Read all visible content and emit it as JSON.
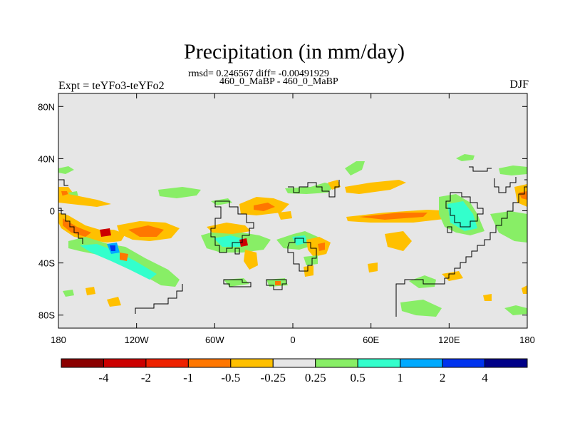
{
  "header": {
    "title": "Precipitation (in mm/day)",
    "stats": "rmsd= 0.246567 diff= -0.00491929",
    "period": "460_0_MaBP - 460_0_MaBP",
    "expt": "Expt = teYFo3-teYFo2",
    "season": "DJF"
  },
  "map": {
    "lon_range": [
      -180,
      180
    ],
    "lat_range": [
      -90,
      90
    ],
    "lat_ticks": [
      {
        "value": 80,
        "label": "80N"
      },
      {
        "value": 40,
        "label": "40N"
      },
      {
        "value": 0,
        "label": "0"
      },
      {
        "value": -40,
        "label": "40S"
      },
      {
        "value": -80,
        "label": "80S"
      }
    ],
    "lon_ticks": [
      {
        "value": -180,
        "label": "180"
      },
      {
        "value": -120,
        "label": "120W"
      },
      {
        "value": -60,
        "label": "60W"
      },
      {
        "value": 0,
        "label": "0"
      },
      {
        "value": 60,
        "label": "60E"
      },
      {
        "value": 120,
        "label": "120E"
      },
      {
        "value": 180,
        "label": "180"
      }
    ],
    "background_color": "#e6e6e6",
    "coast_color": "#000000"
  },
  "colorbar": {
    "colors": [
      "#8b0000",
      "#cc0000",
      "#ee2200",
      "#ff7700",
      "#ffc000",
      "#e6e6e6",
      "#88ee66",
      "#33ffcc",
      "#00aaff",
      "#0033ee",
      "#000088"
    ],
    "labels": [
      "-4",
      "-2",
      "-1",
      "-0.5",
      "-0.25",
      "0.25",
      "0.5",
      "1",
      "2",
      "4"
    ]
  }
}
